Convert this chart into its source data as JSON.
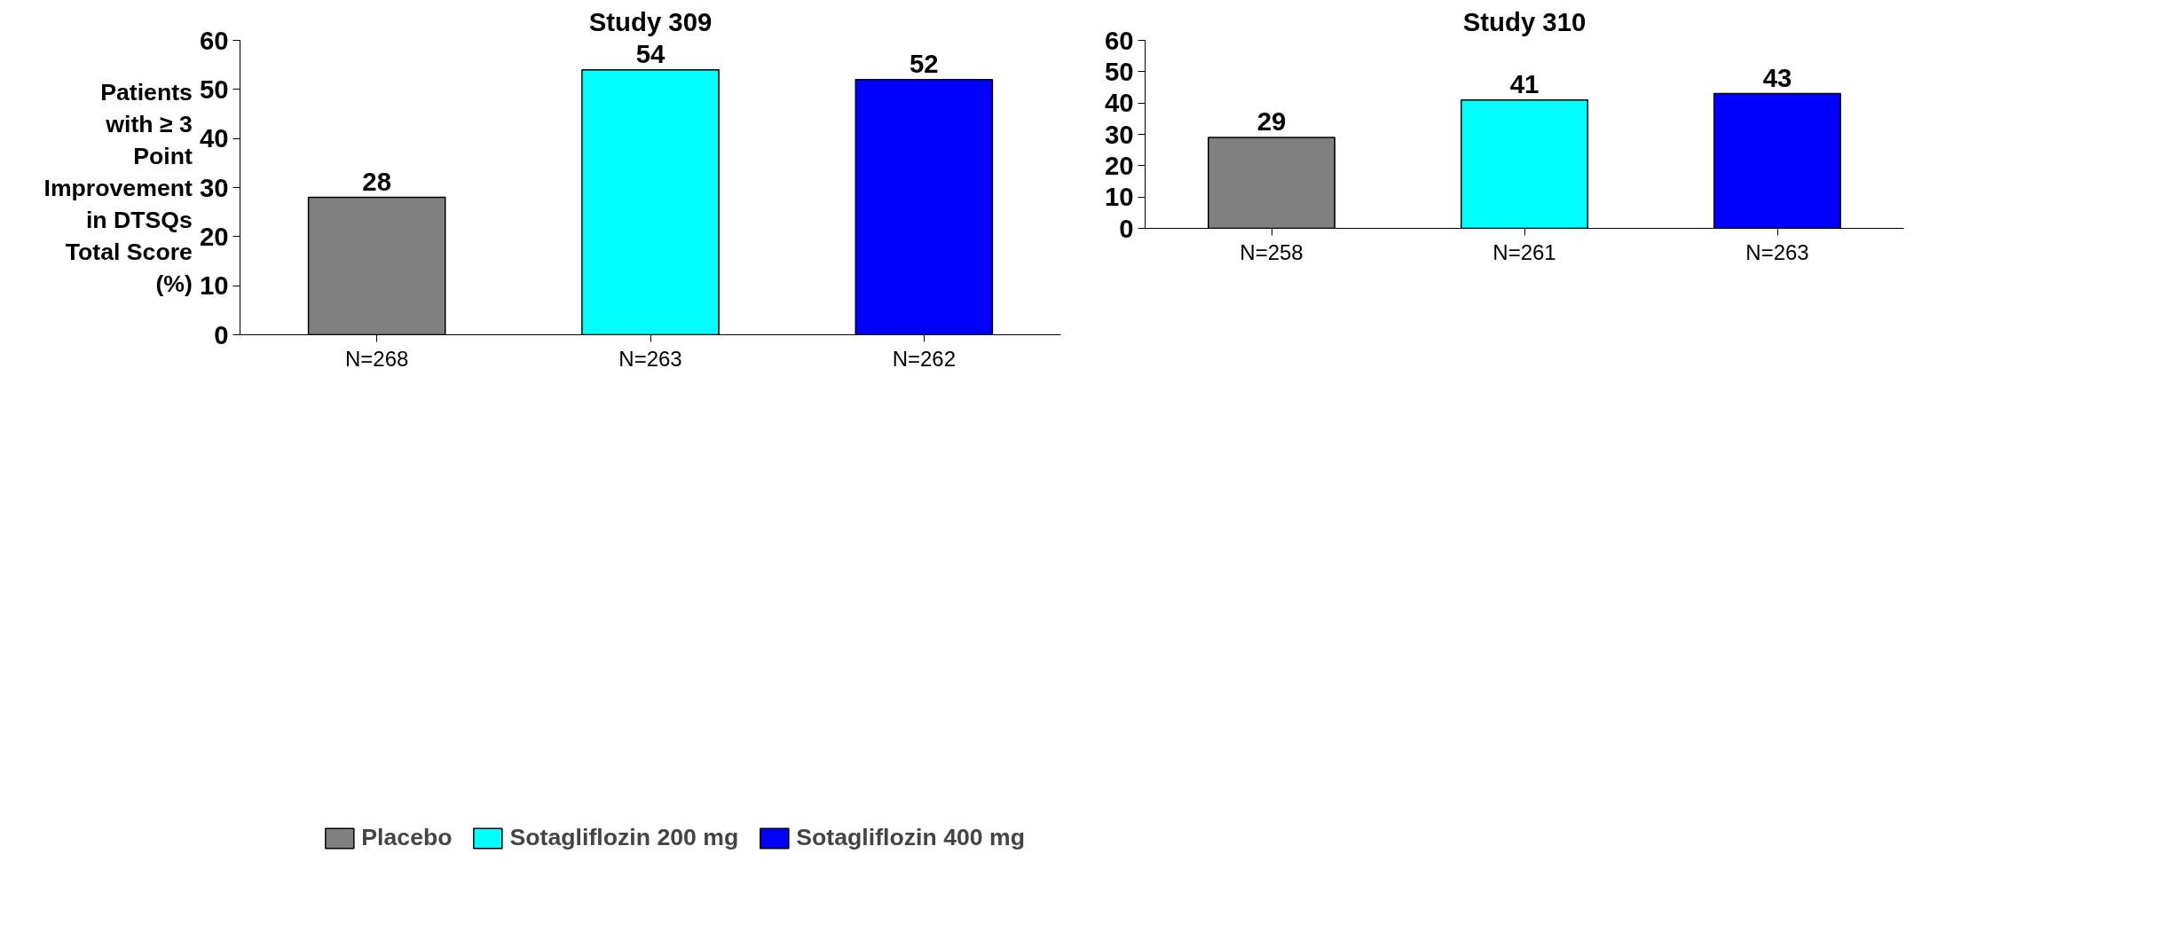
{
  "chart_data": [
    {
      "type": "bar",
      "title": "Study 309",
      "ylabel": "Patients with ≥ 3 Point Improvement in DTSQs Total Score (%)",
      "categories": [
        "N=268",
        "N=263",
        "N=262"
      ],
      "series": [
        {
          "name": "Placebo",
          "color": "#808080",
          "values": [
            28,
            null,
            null
          ]
        },
        {
          "name": "Sotagliflozin 200 mg",
          "color": "#00ffff",
          "values": [
            null,
            54,
            null
          ]
        },
        {
          "name": "Sotagliflozin 400 mg",
          "color": "#0000ff",
          "values": [
            null,
            null,
            52
          ]
        }
      ],
      "ylim": [
        0,
        60
      ],
      "yticks": [
        0,
        10,
        20,
        30,
        40,
        50,
        60
      ],
      "data_labels": true,
      "grid": false,
      "legend": "bottom"
    },
    {
      "type": "bar",
      "title": "Study 310",
      "categories": [
        "N=258",
        "N=261",
        "N=263"
      ],
      "series": [
        {
          "color": "#808080",
          "values": [
            29,
            null,
            null
          ]
        },
        {
          "color": "#00ffff",
          "values": [
            null,
            41,
            null
          ]
        },
        {
          "color": "#0000ff",
          "values": [
            null,
            null,
            43
          ]
        }
      ],
      "ylim": [
        0,
        60
      ],
      "yticks": [
        0,
        10,
        20,
        30,
        40,
        50,
        60
      ],
      "data_labels": true,
      "grid": false
    }
  ]
}
